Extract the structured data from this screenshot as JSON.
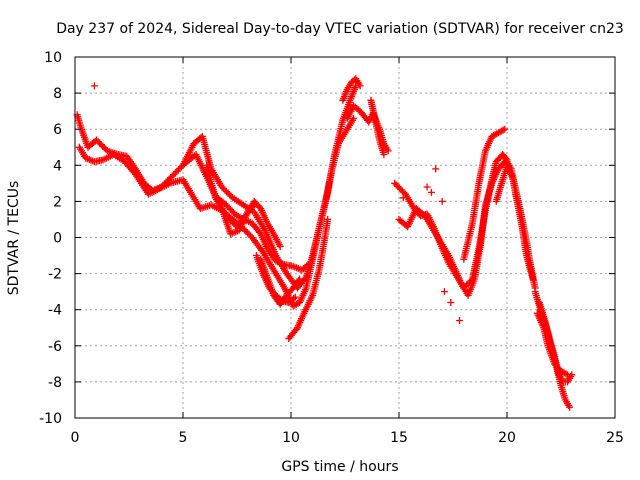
{
  "chart_data": {
    "type": "scatter",
    "title": "Day 237 of 2024, Sidereal Day-to-day VTEC variation (SDTVAR) for receiver cn23",
    "xlabel": "GPS time / hours",
    "ylabel": "SDTVAR / TECUs",
    "xlim": [
      0,
      25
    ],
    "ylim": [
      -10,
      10
    ],
    "xticks": [
      "0",
      "5",
      "10",
      "15",
      "20",
      "25"
    ],
    "xtick_values": [
      0,
      5,
      10,
      15,
      20,
      25
    ],
    "yticks": [
      "-10",
      "-8",
      "-6",
      "-4",
      "-2",
      "0",
      "2",
      "4",
      "6",
      "8",
      "10"
    ],
    "ytick_values": [
      -10,
      -8,
      -6,
      -4,
      -2,
      0,
      2,
      4,
      6,
      8,
      10
    ],
    "grid": true,
    "marker": "+",
    "color": "#ff0000",
    "series": [
      {
        "name": "SDTVAR",
        "tracks": [
          [
            [
              0.1,
              6.8
            ],
            [
              0.3,
              6.0
            ],
            [
              0.6,
              5.0
            ],
            [
              1.0,
              5.4
            ],
            [
              1.5,
              4.8
            ],
            [
              2.0,
              4.6
            ],
            [
              2.4,
              4.5
            ],
            [
              2.8,
              3.8
            ],
            [
              3.2,
              3.0
            ],
            [
              3.6,
              2.6
            ],
            [
              4.0,
              2.8
            ],
            [
              4.5,
              3.4
            ],
            [
              5.0,
              4.0
            ],
            [
              5.5,
              5.2
            ],
            [
              5.9,
              5.6
            ],
            [
              6.3,
              3.8
            ],
            [
              6.8,
              2.8
            ],
            [
              7.3,
              2.2
            ],
            [
              7.8,
              1.8
            ],
            [
              8.3,
              1.4
            ],
            [
              8.8,
              0.4
            ],
            [
              9.3,
              -1.0
            ],
            [
              9.8,
              -2.0
            ],
            [
              10.3,
              -2.8
            ],
            [
              10.7,
              -2.2
            ],
            [
              11.0,
              -1.0
            ],
            [
              11.3,
              0.5
            ],
            [
              11.7,
              2.5
            ],
            [
              12.0,
              4.5
            ],
            [
              12.4,
              6.5
            ],
            [
              12.8,
              7.8
            ],
            [
              13.0,
              8.4
            ]
          ],
          [
            [
              0.2,
              5.0
            ],
            [
              0.5,
              4.4
            ],
            [
              0.9,
              4.2
            ],
            [
              1.3,
              4.3
            ],
            [
              1.8,
              4.6
            ],
            [
              2.3,
              4.2
            ],
            [
              2.8,
              3.5
            ],
            [
              3.4,
              2.4
            ],
            [
              3.9,
              2.7
            ],
            [
              4.4,
              3.0
            ],
            [
              5.0,
              3.2
            ],
            [
              5.4,
              2.4
            ],
            [
              5.8,
              1.6
            ],
            [
              6.3,
              1.8
            ],
            [
              6.8,
              1.5
            ],
            [
              7.3,
              1.0
            ],
            [
              7.7,
              0.6
            ],
            [
              8.2,
              0.0
            ],
            [
              8.7,
              -0.8
            ],
            [
              9.2,
              -1.8
            ],
            [
              9.7,
              -2.8
            ],
            [
              10.1,
              -3.8
            ],
            [
              10.4,
              -3.6
            ],
            [
              10.7,
              -2.8
            ],
            [
              11.0,
              -1.2
            ],
            [
              11.3,
              0.5
            ],
            [
              11.6,
              2.0
            ],
            [
              11.9,
              3.8
            ],
            [
              12.2,
              5.2
            ],
            [
              12.6,
              6.0
            ],
            [
              12.9,
              6.6
            ]
          ],
          [
            [
              5.0,
              4.0
            ],
            [
              5.3,
              4.3
            ],
            [
              5.6,
              4.6
            ],
            [
              6.0,
              3.6
            ],
            [
              6.5,
              2.3
            ],
            [
              7.0,
              1.8
            ],
            [
              7.4,
              1.3
            ],
            [
              7.8,
              1.0
            ],
            [
              8.2,
              0.8
            ],
            [
              8.6,
              0.2
            ],
            [
              8.9,
              -0.6
            ],
            [
              9.3,
              -1.3
            ],
            [
              9.7,
              -1.5
            ],
            [
              10.1,
              -1.6
            ],
            [
              10.5,
              -1.8
            ],
            [
              10.8,
              -1.5
            ]
          ],
          [
            [
              6.1,
              4.0
            ],
            [
              6.5,
              2.2
            ],
            [
              7.0,
              1.2
            ],
            [
              7.5,
              0.6
            ],
            [
              7.9,
              1.2
            ],
            [
              8.3,
              2.0
            ],
            [
              8.6,
              1.6
            ],
            [
              8.9,
              0.8
            ],
            [
              9.2,
              0.2
            ],
            [
              9.5,
              -0.5
            ]
          ],
          [
            [
              6.8,
              1.6
            ],
            [
              7.2,
              0.2
            ],
            [
              7.6,
              0.4
            ],
            [
              8.0,
              1.4
            ],
            [
              8.3,
              1.8
            ]
          ],
          [
            [
              8.4,
              -1.0
            ],
            [
              8.7,
              -2.0
            ],
            [
              9.0,
              -2.8
            ],
            [
              9.3,
              -3.2
            ],
            [
              9.6,
              -3.5
            ],
            [
              9.9,
              -3.6
            ],
            [
              10.2,
              -3.3
            ]
          ],
          [
            [
              8.6,
              -1.2
            ],
            [
              8.9,
              -2.2
            ],
            [
              9.2,
              -3.2
            ],
            [
              9.5,
              -3.7
            ],
            [
              9.8,
              -3.2
            ],
            [
              10.1,
              -2.8
            ],
            [
              10.4,
              -2.3
            ]
          ],
          [
            [
              9.9,
              -5.6
            ],
            [
              10.3,
              -5.0
            ],
            [
              10.6,
              -4.2
            ],
            [
              11.0,
              -3.2
            ],
            [
              11.3,
              -1.8
            ],
            [
              11.5,
              -0.5
            ],
            [
              11.7,
              1.0
            ]
          ],
          [
            [
              12.4,
              7.6
            ],
            [
              12.6,
              8.2
            ],
            [
              12.8,
              8.6
            ],
            [
              13.0,
              8.8
            ],
            [
              13.2,
              8.4
            ]
          ],
          [
            [
              12.6,
              6.6
            ],
            [
              12.9,
              7.3
            ],
            [
              13.2,
              7.0
            ],
            [
              13.6,
              6.4
            ],
            [
              13.8,
              6.9
            ],
            [
              14.1,
              6.0
            ],
            [
              14.3,
              5.2
            ],
            [
              14.5,
              4.8
            ]
          ],
          [
            [
              13.7,
              7.6
            ],
            [
              13.9,
              6.5
            ],
            [
              14.1,
              5.4
            ],
            [
              14.3,
              4.6
            ]
          ],
          [
            [
              14.8,
              3.0
            ],
            [
              15.3,
              2.4
            ],
            [
              15.7,
              1.6
            ],
            [
              16.0,
              1.2
            ],
            [
              16.3,
              1.3
            ],
            [
              16.6,
              0.6
            ],
            [
              17.0,
              -0.6
            ],
            [
              17.3,
              -1.4
            ],
            [
              17.7,
              -2.2
            ],
            [
              18.0,
              -2.8
            ],
            [
              18.4,
              -2.3
            ],
            [
              18.7,
              -0.6
            ],
            [
              19.0,
              1.5
            ],
            [
              19.3,
              3.2
            ],
            [
              19.5,
              4.2
            ],
            [
              19.8,
              4.6
            ],
            [
              20.0,
              4.3
            ]
          ],
          [
            [
              15.0,
              1.0
            ],
            [
              15.4,
              0.6
            ],
            [
              15.8,
              1.6
            ],
            [
              16.2,
              1.2
            ],
            [
              16.6,
              0.4
            ],
            [
              16.9,
              -0.2
            ],
            [
              17.3,
              -1.0
            ],
            [
              17.6,
              -1.8
            ],
            [
              17.9,
              -2.6
            ],
            [
              18.2,
              -3.2
            ],
            [
              18.5,
              -2.3
            ],
            [
              18.8,
              -0.2
            ],
            [
              19.0,
              1.8
            ],
            [
              19.3,
              3.0
            ],
            [
              19.6,
              3.8
            ],
            [
              19.9,
              4.2
            ]
          ],
          [
            [
              18.0,
              -1.2
            ],
            [
              18.4,
              0.8
            ],
            [
              18.7,
              3.0
            ],
            [
              19.0,
              4.8
            ],
            [
              19.3,
              5.6
            ],
            [
              19.6,
              5.8
            ],
            [
              19.9,
              6.0
            ]
          ],
          [
            [
              19.5,
              2.0
            ],
            [
              19.8,
              3.2
            ],
            [
              20.0,
              4.0
            ],
            [
              20.3,
              3.2
            ],
            [
              20.6,
              1.6
            ],
            [
              20.9,
              -0.2
            ],
            [
              21.1,
              -1.6
            ],
            [
              21.3,
              -2.8
            ]
          ],
          [
            [
              19.9,
              4.4
            ],
            [
              20.2,
              3.8
            ],
            [
              20.4,
              2.4
            ],
            [
              20.7,
              0.6
            ],
            [
              20.9,
              -1.0
            ],
            [
              21.2,
              -2.3
            ]
          ],
          [
            [
              21.3,
              -3.0
            ],
            [
              21.6,
              -4.2
            ],
            [
              21.9,
              -5.3
            ],
            [
              22.1,
              -6.2
            ],
            [
              22.3,
              -7.2
            ],
            [
              22.5,
              -8.2
            ],
            [
              22.7,
              -9.0
            ],
            [
              22.9,
              -9.4
            ]
          ],
          [
            [
              21.5,
              -3.6
            ],
            [
              21.8,
              -4.8
            ],
            [
              22.0,
              -5.8
            ],
            [
              22.2,
              -6.6
            ],
            [
              22.4,
              -7.6
            ],
            [
              22.6,
              -8.0
            ],
            [
              22.8,
              -8.0
            ],
            [
              23.0,
              -7.6
            ]
          ],
          [
            [
              21.4,
              -4.2
            ],
            [
              21.7,
              -5.0
            ],
            [
              21.9,
              -6.0
            ],
            [
              22.2,
              -7.0
            ],
            [
              22.5,
              -7.4
            ],
            [
              22.8,
              -7.6
            ]
          ]
        ],
        "points": [
          [
            0.9,
            8.4
          ],
          [
            17.1,
            -3.0
          ],
          [
            17.4,
            -3.6
          ],
          [
            17.8,
            -4.6
          ],
          [
            15.2,
            2.2
          ],
          [
            16.5,
            2.5
          ],
          [
            16.7,
            3.8
          ],
          [
            17.0,
            2.0
          ],
          [
            16.3,
            2.8
          ]
        ]
      }
    ]
  }
}
